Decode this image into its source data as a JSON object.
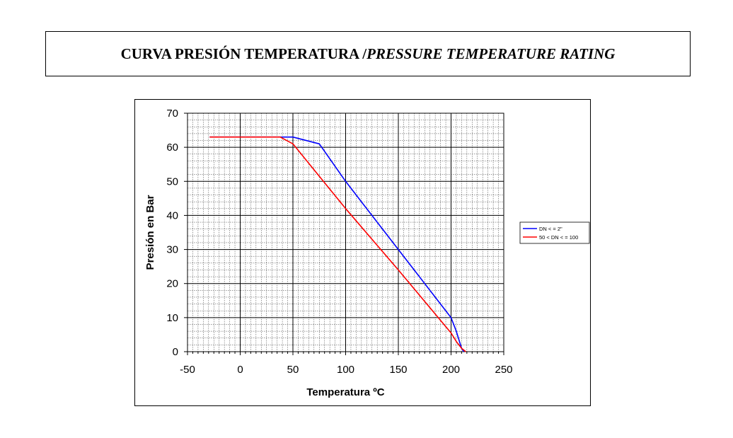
{
  "header": {
    "title_es": "CURVA PRESIÓN TEMPERATURA / ",
    "title_en": "PRESSURE TEMPERATURE RATING"
  },
  "chart_data": {
    "type": "line",
    "xlabel": "Temperatura ºC",
    "ylabel": "Presión en Bar",
    "xlim": [
      -50,
      250
    ],
    "ylim": [
      0,
      70
    ],
    "xticks": [
      -50,
      0,
      50,
      100,
      150,
      200,
      250
    ],
    "yticks": [
      0,
      10,
      20,
      30,
      40,
      50,
      60,
      70
    ],
    "grid": true,
    "legend_position": "right",
    "series": [
      {
        "name": "DN < = 2\"",
        "color": "#0000ff",
        "x": [
          -29,
          38,
          50,
          75,
          100,
          150,
          200,
          205,
          210,
          212
        ],
        "y": [
          63,
          63,
          63,
          61,
          50,
          30,
          10,
          6,
          1,
          0
        ]
      },
      {
        "name": "50 < DN < = 100",
        "color": "#ff0000",
        "x": [
          -29,
          38,
          50,
          100,
          150,
          200,
          205,
          210,
          214
        ],
        "y": [
          63,
          63,
          61,
          42,
          24,
          5.5,
          3,
          1,
          0
        ]
      }
    ]
  }
}
